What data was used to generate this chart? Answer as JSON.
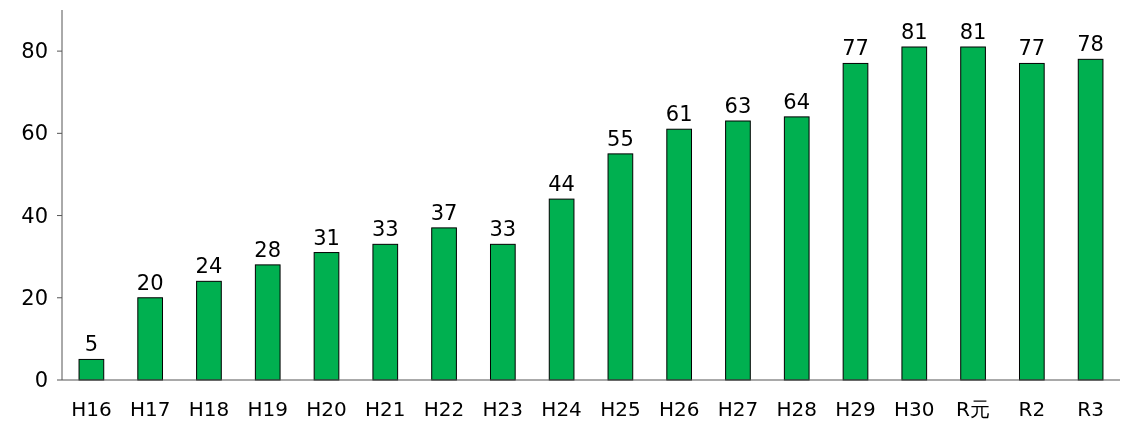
{
  "chart_data": {
    "type": "bar",
    "categories": [
      "H16",
      "H17",
      "H18",
      "H19",
      "H20",
      "H21",
      "H22",
      "H23",
      "H24",
      "H25",
      "H26",
      "H27",
      "H28",
      "H29",
      "H30",
      "R元",
      "R2",
      "R3"
    ],
    "values": [
      5,
      20,
      24,
      28,
      31,
      33,
      37,
      33,
      44,
      55,
      61,
      63,
      64,
      77,
      81,
      81,
      77,
      78
    ],
    "color": "#00b050",
    "ylim": [
      0,
      90
    ],
    "yticks": [
      0,
      20,
      40,
      60,
      80
    ],
    "data_labels": true
  }
}
